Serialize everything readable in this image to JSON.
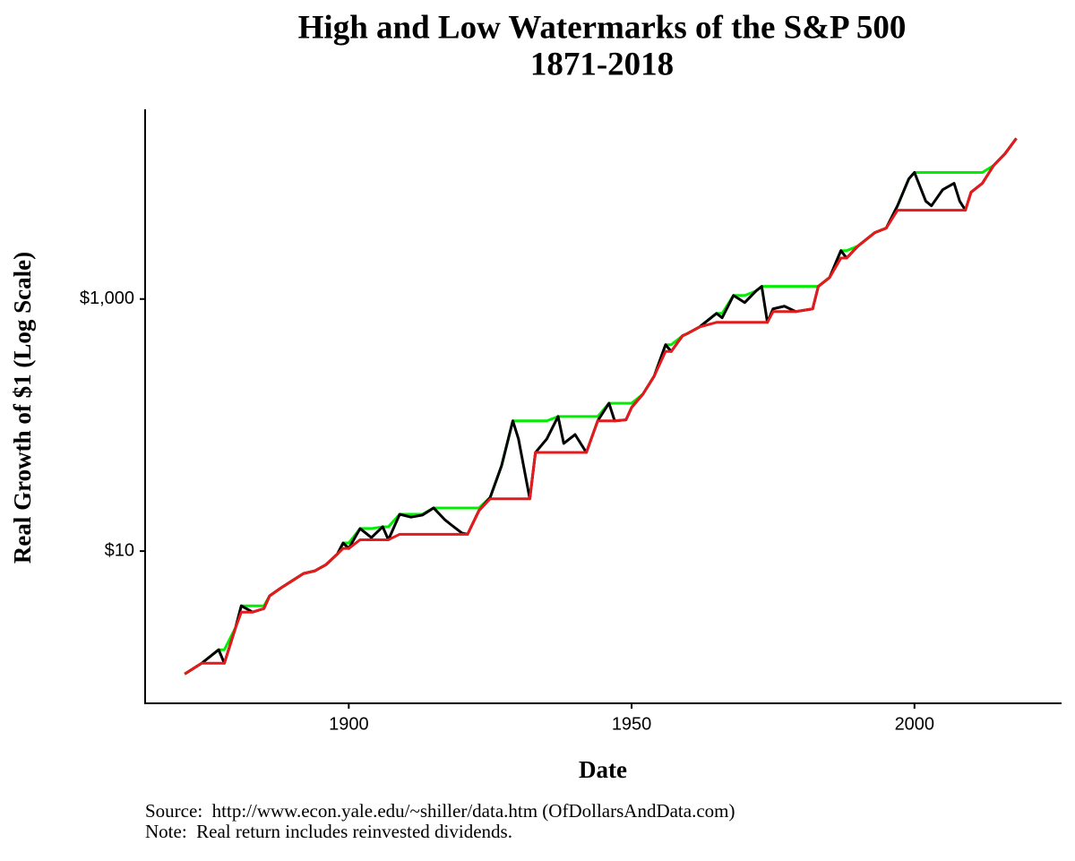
{
  "chart_data": {
    "type": "line",
    "title": [
      "High and Low Watermarks of the S&P 500",
      "1871-2018"
    ],
    "x_label": "Date",
    "y_label": "Real Growth of $1 (Log Scale)",
    "notes": [
      "Source:  http://www.econ.yale.edu/~shiller/data.htm (OfDollarsAndData.com)",
      "Note:  Real return includes reinvested dividends."
    ],
    "x": [
      1871,
      1874,
      1877,
      1878,
      1880,
      1881,
      1883,
      1885,
      1886,
      1888,
      1890,
      1892,
      1894,
      1896,
      1898,
      1899,
      1900,
      1902,
      1904,
      1906,
      1907,
      1909,
      1911,
      1913,
      1915,
      1917,
      1918,
      1920,
      1921,
      1923,
      1925,
      1927,
      1929,
      1930,
      1932,
      1933,
      1935,
      1937,
      1938,
      1940,
      1942,
      1944,
      1946,
      1947,
      1949,
      1950,
      1952,
      1954,
      1956,
      1957,
      1959,
      1960,
      1962,
      1965,
      1966,
      1968,
      1970,
      1972,
      1973,
      1974,
      1975,
      1977,
      1979,
      1982,
      1983,
      1985,
      1987,
      1988,
      1990,
      1993,
      1995,
      1997,
      1999,
      2000,
      2002,
      2003,
      2005,
      2007,
      2008,
      2009,
      2010,
      2012,
      2014,
      2016,
      2018
    ],
    "series": [
      {
        "color": "#00ee00",
        "values": [
          1.06,
          1.29,
          1.65,
          1.65,
          2.48,
          3.68,
          3.68,
          3.68,
          4.41,
          5.1,
          5.82,
          6.64,
          6.97,
          7.82,
          9.5,
          11.6,
          11.6,
          15.1,
          15.1,
          15.6,
          15.6,
          19.6,
          19.6,
          19.6,
          22.0,
          22.0,
          22.0,
          22.0,
          22.0,
          22.0,
          26.7,
          47.4,
          108,
          108,
          108,
          108,
          108,
          117,
          117,
          117,
          117,
          117,
          149,
          149,
          149,
          149,
          176,
          245,
          434,
          434,
          511,
          536,
          600,
          769,
          769,
          1067,
          1067,
          1159,
          1259,
          1259,
          1259,
          1259,
          1259,
          1259,
          1259,
          1482,
          2421,
          2421,
          2630,
          3365,
          3650,
          5490,
          8990,
          10090,
          10090,
          10090,
          10090,
          10090,
          10090,
          10090,
          10090,
          10090,
          11480,
          14220,
          18800
        ]
      },
      {
        "color": "#000000",
        "values": [
          1.06,
          1.29,
          1.65,
          1.29,
          2.48,
          3.68,
          3.28,
          3.5,
          4.41,
          5.1,
          5.82,
          6.64,
          6.97,
          7.82,
          9.5,
          11.6,
          10.5,
          15.1,
          12.8,
          15.6,
          12.3,
          19.6,
          18.6,
          19.3,
          22.0,
          17.7,
          16.3,
          13.9,
          13.6,
          20.9,
          26.7,
          47.4,
          108,
          77.6,
          26.0,
          60.6,
          77.6,
          117,
          71.5,
          84.1,
          60.6,
          108,
          149,
          108,
          110,
          138,
          176,
          245,
          434,
          384,
          511,
          536,
          600,
          769,
          710,
          1067,
          937,
          1159,
          1259,
          653,
          835,
          877,
          795,
          835,
          1259,
          1482,
          2421,
          2113,
          2630,
          3365,
          3650,
          5490,
          8990,
          10090,
          5970,
          5490,
          7380,
          8280,
          5970,
          5070,
          7030,
          8280,
          11480,
          14220,
          18800
        ]
      },
      {
        "color": "#e41a1c",
        "values": [
          1.06,
          1.29,
          1.29,
          1.29,
          2.48,
          3.28,
          3.28,
          3.5,
          4.41,
          5.1,
          5.82,
          6.64,
          6.97,
          7.82,
          9.5,
          10.5,
          10.5,
          12.3,
          12.3,
          12.3,
          12.3,
          13.6,
          13.6,
          13.6,
          13.6,
          13.6,
          13.6,
          13.6,
          13.6,
          20.9,
          26.0,
          26.0,
          26.0,
          26.0,
          26.0,
          60.6,
          60.6,
          60.6,
          60.6,
          60.6,
          60.6,
          108,
          108,
          108,
          110,
          138,
          176,
          245,
          384,
          384,
          511,
          536,
          600,
          653,
          653,
          653,
          653,
          653,
          653,
          653,
          795,
          795,
          795,
          835,
          1259,
          1482,
          2113,
          2113,
          2630,
          3365,
          3650,
          5070,
          5070,
          5070,
          5070,
          5070,
          5070,
          5070,
          5070,
          5070,
          7030,
          8280,
          11480,
          14220,
          18800
        ]
      }
    ],
    "xlim": [
      1864,
      2026
    ],
    "xticks": [
      1900,
      1950,
      2000
    ],
    "ylim": [
      0.62,
      32000
    ],
    "yticks": [
      {
        "value": 10,
        "label": "$10"
      },
      {
        "value": 1000,
        "label": "$1,000"
      }
    ],
    "log_scale": true,
    "grid": false
  }
}
